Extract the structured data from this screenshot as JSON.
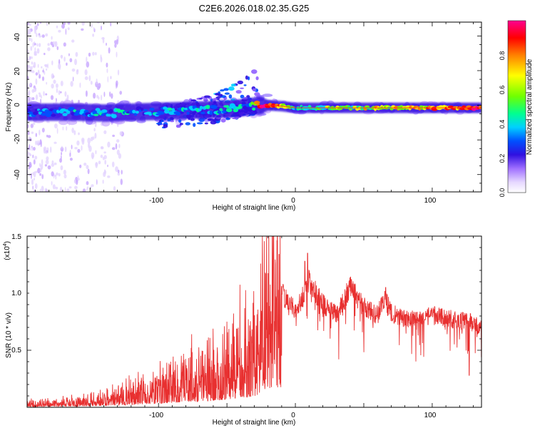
{
  "title": "C2E6.2026.018.02.35.G25",
  "colors": {
    "snr_line": "#e83030",
    "axis": "#000000",
    "colormap": [
      "#ffffff",
      "#e8d8ff",
      "#9060ff",
      "#3010e0",
      "#0050ff",
      "#00d0ff",
      "#00ff90",
      "#70ff00",
      "#ffff00",
      "#ff8000",
      "#ff0000",
      "#ff0090"
    ]
  },
  "chart_data": [
    {
      "type": "heatmap",
      "name": "spectrogram",
      "xlabel": "Height of straight line (km)",
      "ylabel": "Frequency (Hz)",
      "xlim": [
        -196,
        136
      ],
      "ylim": [
        -50,
        48
      ],
      "xticks": [
        "-100",
        "0",
        "100"
      ],
      "yticks": [
        "40",
        "20",
        "0",
        "-20",
        "-40"
      ],
      "ridge": {
        "x": [
          -196,
          -180,
          -160,
          -140,
          -120,
          -100,
          -80,
          -60,
          -45,
          -35,
          -25,
          -20,
          -10,
          0,
          20,
          50,
          80,
          100,
          120,
          136
        ],
        "center_hz": [
          -4,
          -4,
          -4,
          -4.5,
          -4,
          -3.5,
          -3,
          -2.5,
          -2,
          -1,
          0,
          0,
          -0.5,
          -1.5,
          -1.5,
          -1.5,
          -1.5,
          -1.5,
          -1.5,
          -1.5
        ],
        "amplitude": [
          0.35,
          0.35,
          0.4,
          0.4,
          0.4,
          0.4,
          0.45,
          0.45,
          0.45,
          0.4,
          0.9,
          0.85,
          0.8,
          0.45,
          0.55,
          0.65,
          0.7,
          0.8,
          0.85,
          0.85
        ]
      },
      "branch": {
        "x": [
          -100,
          -80,
          -60,
          -45,
          -35,
          -27
        ],
        "upper_hz": [
          -2,
          2,
          6,
          12,
          17,
          22
        ],
        "lower_hz": [
          -14,
          -12,
          -10,
          -8,
          -6,
          -4
        ]
      },
      "colorbar": {
        "label": "Normalized spectral amplitude",
        "range": [
          0.0,
          1.0
        ],
        "ticks": [
          "0.0",
          "0.2",
          "0.4",
          "0.6",
          "0.8"
        ]
      }
    },
    {
      "type": "line",
      "name": "snr",
      "xlabel": "Height of straight line (km)",
      "ylabel": "SNR (10 * v/v)",
      "y_multiplier": "(x10",
      "y_multiplier_exp": "4",
      "xlim": [
        -196,
        136
      ],
      "ylim": [
        0,
        1.5
      ],
      "xticks": [
        "-100",
        "0",
        "100"
      ],
      "yticks": [
        "1.5",
        "1.0",
        "0.5"
      ],
      "envelope": {
        "x": [
          -196,
          -160,
          -140,
          -120,
          -100,
          -80,
          -60,
          -50,
          -40,
          -30,
          -25,
          -20,
          -15,
          -10,
          -5,
          0,
          5,
          10,
          20,
          30,
          40,
          50,
          60,
          65,
          70,
          80,
          90,
          100,
          110,
          120,
          130,
          136
        ],
        "y": [
          0.04,
          0.06,
          0.09,
          0.15,
          0.22,
          0.3,
          0.38,
          0.45,
          0.55,
          0.65,
          0.8,
          1.1,
          1.2,
          1.05,
          0.95,
          0.9,
          1.0,
          1.15,
          0.95,
          0.85,
          1.1,
          0.92,
          0.85,
          1.0,
          0.88,
          0.82,
          0.8,
          0.85,
          0.82,
          0.8,
          0.78,
          0.72
        ]
      },
      "spikes": [
        {
          "x": -16,
          "y": 1.5
        },
        {
          "x": -12,
          "y": 1.34
        },
        {
          "x": 7,
          "y": 1.28
        },
        {
          "x": 9,
          "y": 1.35
        },
        {
          "x": 41,
          "y": 1.12
        },
        {
          "x": 66,
          "y": 1.05
        },
        {
          "x": 127,
          "y": 0.28
        }
      ]
    }
  ]
}
